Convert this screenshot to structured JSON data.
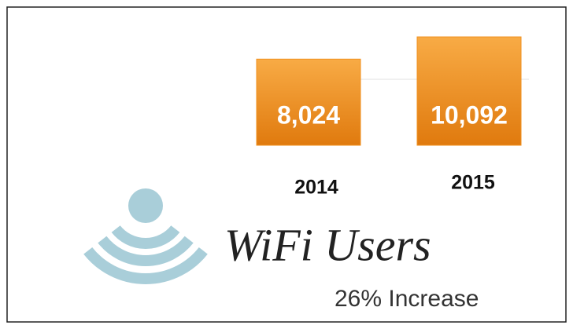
{
  "chart_data": {
    "type": "bar",
    "title": "WiFi Users",
    "subtitle": "26% Increase",
    "categories": [
      "2014",
      "2015"
    ],
    "values": [
      8024,
      10092
    ],
    "value_labels": [
      "8,024",
      "10,092"
    ],
    "color": "#f0901f"
  }
}
